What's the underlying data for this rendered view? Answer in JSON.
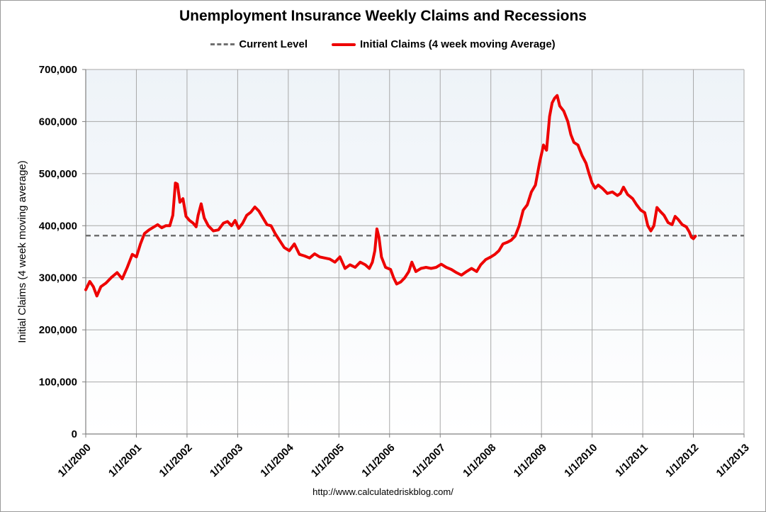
{
  "chart_data": {
    "type": "line",
    "title": "Unemployment Insurance Weekly Claims and Recessions",
    "ylabel": "Initial Claims (4 week moving average)",
    "xlabel": "",
    "ylim": [
      0,
      700000
    ],
    "xlim": [
      2000,
      2013
    ],
    "grid": true,
    "legend_position": "top-center",
    "y_ticks": [
      "0",
      "100,000",
      "200,000",
      "300,000",
      "400,000",
      "500,000",
      "600,000",
      "700,000"
    ],
    "x_ticks": [
      "1/1/2000",
      "1/1/2001",
      "1/1/2002",
      "1/1/2003",
      "1/1/2004",
      "1/1/2005",
      "1/1/2006",
      "1/1/2007",
      "1/1/2008",
      "1/1/2009",
      "1/1/2010",
      "1/1/2011",
      "1/1/2012",
      "1/1/2013"
    ],
    "series": [
      {
        "name": "Current Level",
        "style": "dashed",
        "color": "#707070",
        "value": 381000
      },
      {
        "name": "Initial Claims (4 week moving Average)",
        "style": "solid",
        "color": "#ee0000",
        "points": [
          [
            2000.0,
            277000
          ],
          [
            2000.08,
            293000
          ],
          [
            2000.15,
            283000
          ],
          [
            2000.22,
            265000
          ],
          [
            2000.3,
            283000
          ],
          [
            2000.4,
            290000
          ],
          [
            2000.5,
            300000
          ],
          [
            2000.62,
            310000
          ],
          [
            2000.72,
            298000
          ],
          [
            2000.82,
            320000
          ],
          [
            2000.92,
            345000
          ],
          [
            2001.0,
            340000
          ],
          [
            2001.08,
            365000
          ],
          [
            2001.16,
            385000
          ],
          [
            2001.25,
            392000
          ],
          [
            2001.35,
            398000
          ],
          [
            2001.42,
            402000
          ],
          [
            2001.5,
            396000
          ],
          [
            2001.58,
            400000
          ],
          [
            2001.66,
            400000
          ],
          [
            2001.72,
            420000
          ],
          [
            2001.77,
            482000
          ],
          [
            2001.81,
            480000
          ],
          [
            2001.86,
            445000
          ],
          [
            2001.92,
            452000
          ],
          [
            2001.98,
            418000
          ],
          [
            2002.05,
            410000
          ],
          [
            2002.12,
            405000
          ],
          [
            2002.18,
            398000
          ],
          [
            2002.22,
            420000
          ],
          [
            2002.28,
            442000
          ],
          [
            2002.34,
            415000
          ],
          [
            2002.42,
            400000
          ],
          [
            2002.52,
            390000
          ],
          [
            2002.62,
            392000
          ],
          [
            2002.72,
            405000
          ],
          [
            2002.8,
            408000
          ],
          [
            2002.88,
            400000
          ],
          [
            2002.95,
            410000
          ],
          [
            2003.02,
            395000
          ],
          [
            2003.1,
            405000
          ],
          [
            2003.18,
            420000
          ],
          [
            2003.26,
            426000
          ],
          [
            2003.34,
            436000
          ],
          [
            2003.42,
            428000
          ],
          [
            2003.5,
            415000
          ],
          [
            2003.58,
            402000
          ],
          [
            2003.66,
            400000
          ],
          [
            2003.74,
            385000
          ],
          [
            2003.84,
            370000
          ],
          [
            2003.92,
            358000
          ],
          [
            2004.02,
            352000
          ],
          [
            2004.12,
            365000
          ],
          [
            2004.22,
            345000
          ],
          [
            2004.32,
            342000
          ],
          [
            2004.42,
            338000
          ],
          [
            2004.52,
            346000
          ],
          [
            2004.62,
            340000
          ],
          [
            2004.72,
            338000
          ],
          [
            2004.82,
            336000
          ],
          [
            2004.92,
            330000
          ],
          [
            2005.02,
            340000
          ],
          [
            2005.12,
            318000
          ],
          [
            2005.22,
            325000
          ],
          [
            2005.32,
            320000
          ],
          [
            2005.42,
            330000
          ],
          [
            2005.52,
            325000
          ],
          [
            2005.6,
            318000
          ],
          [
            2005.66,
            330000
          ],
          [
            2005.71,
            352000
          ],
          [
            2005.75,
            394000
          ],
          [
            2005.79,
            378000
          ],
          [
            2005.84,
            340000
          ],
          [
            2005.92,
            320000
          ],
          [
            2006.02,
            316000
          ],
          [
            2006.08,
            300000
          ],
          [
            2006.14,
            288000
          ],
          [
            2006.22,
            292000
          ],
          [
            2006.3,
            300000
          ],
          [
            2006.38,
            312000
          ],
          [
            2006.44,
            330000
          ],
          [
            2006.52,
            312000
          ],
          [
            2006.62,
            318000
          ],
          [
            2006.72,
            320000
          ],
          [
            2006.82,
            318000
          ],
          [
            2006.92,
            320000
          ],
          [
            2007.02,
            326000
          ],
          [
            2007.12,
            320000
          ],
          [
            2007.22,
            316000
          ],
          [
            2007.32,
            310000
          ],
          [
            2007.42,
            305000
          ],
          [
            2007.52,
            312000
          ],
          [
            2007.62,
            318000
          ],
          [
            2007.72,
            312000
          ],
          [
            2007.8,
            325000
          ],
          [
            2007.9,
            335000
          ],
          [
            2008.0,
            340000
          ],
          [
            2008.08,
            345000
          ],
          [
            2008.16,
            352000
          ],
          [
            2008.24,
            365000
          ],
          [
            2008.32,
            368000
          ],
          [
            2008.4,
            372000
          ],
          [
            2008.48,
            380000
          ],
          [
            2008.56,
            400000
          ],
          [
            2008.64,
            430000
          ],
          [
            2008.72,
            440000
          ],
          [
            2008.8,
            465000
          ],
          [
            2008.88,
            478000
          ],
          [
            2008.96,
            520000
          ],
          [
            2009.04,
            555000
          ],
          [
            2009.1,
            545000
          ],
          [
            2009.16,
            610000
          ],
          [
            2009.21,
            636000
          ],
          [
            2009.26,
            645000
          ],
          [
            2009.31,
            650000
          ],
          [
            2009.36,
            630000
          ],
          [
            2009.44,
            620000
          ],
          [
            2009.52,
            600000
          ],
          [
            2009.58,
            575000
          ],
          [
            2009.64,
            560000
          ],
          [
            2009.72,
            555000
          ],
          [
            2009.8,
            535000
          ],
          [
            2009.88,
            520000
          ],
          [
            2009.94,
            500000
          ],
          [
            2010.0,
            482000
          ],
          [
            2010.06,
            472000
          ],
          [
            2010.12,
            478000
          ],
          [
            2010.2,
            472000
          ],
          [
            2010.3,
            462000
          ],
          [
            2010.4,
            465000
          ],
          [
            2010.5,
            458000
          ],
          [
            2010.56,
            462000
          ],
          [
            2010.62,
            474000
          ],
          [
            2010.7,
            460000
          ],
          [
            2010.8,
            452000
          ],
          [
            2010.88,
            440000
          ],
          [
            2010.96,
            430000
          ],
          [
            2011.04,
            425000
          ],
          [
            2011.1,
            400000
          ],
          [
            2011.16,
            390000
          ],
          [
            2011.22,
            400000
          ],
          [
            2011.28,
            435000
          ],
          [
            2011.34,
            428000
          ],
          [
            2011.42,
            420000
          ],
          [
            2011.5,
            406000
          ],
          [
            2011.58,
            402000
          ],
          [
            2011.64,
            418000
          ],
          [
            2011.7,
            412000
          ],
          [
            2011.78,
            402000
          ],
          [
            2011.86,
            398000
          ],
          [
            2011.92,
            388000
          ],
          [
            2011.96,
            378000
          ],
          [
            2012.0,
            375000
          ],
          [
            2012.04,
            380000
          ]
        ]
      }
    ]
  },
  "footer": "http://www.calculatedriskblog.com/"
}
